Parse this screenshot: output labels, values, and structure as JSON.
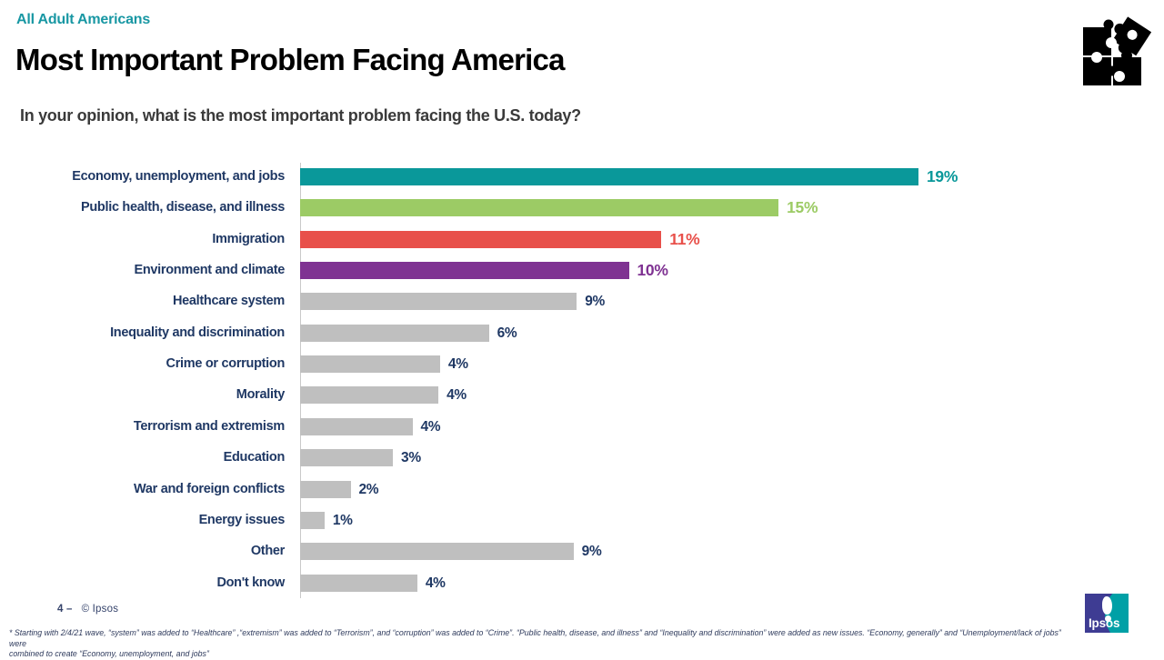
{
  "header": {
    "eyebrow": "All Adult Americans",
    "title": "Most Important Problem Facing America",
    "subtitle": "In your opinion, what is the most important problem facing the U.S. today?"
  },
  "colors": {
    "eyebrow_teal": "#1897A3",
    "category_navy": "#1F3864",
    "bar_teal": "#0A989A",
    "bar_green": "#9CCB65",
    "bar_red": "#E8504A",
    "bar_purple": "#7F3292",
    "bar_gray": "#BFBFBF",
    "axis_gray": "#C9C9C9",
    "logo_indigo": "#3E3C93",
    "logo_teal": "#00A0A6"
  },
  "chart_data": {
    "type": "bar",
    "orientation": "horizontal",
    "title": "Most Important Problem Facing America",
    "xlabel": "",
    "ylabel": "",
    "value_suffix": "%",
    "axis_range": [
      0,
      19
    ],
    "grid": false,
    "legend": false,
    "categories": [
      "Economy, unemployment, and jobs",
      "Public health, disease, and illness",
      "Immigration",
      "Environment and climate",
      "Healthcare system",
      "Inequality and discrimination",
      "Crime or corruption",
      "Morality",
      "Terrorism and extremism",
      "Education",
      "War and foreign conflicts",
      "Energy issues",
      "Other",
      "Don't know"
    ],
    "values": [
      19,
      15,
      11,
      10,
      9,
      6,
      4,
      4,
      4,
      3,
      2,
      1,
      9,
      4
    ],
    "bar_length_estimates": [
      19,
      14.7,
      11.1,
      10.1,
      8.5,
      5.8,
      4.3,
      4.25,
      3.45,
      2.85,
      1.55,
      0.75,
      8.4,
      3.6
    ],
    "bar_colors": [
      "#0A989A",
      "#9CCB65",
      "#E8504A",
      "#7F3292",
      "#BFBFBF",
      "#BFBFBF",
      "#BFBFBF",
      "#BFBFBF",
      "#BFBFBF",
      "#BFBFBF",
      "#BFBFBF",
      "#BFBFBF",
      "#BFBFBF",
      "#BFBFBF"
    ],
    "value_label_colors": [
      "#0A989A",
      "#9CCB65",
      "#E8504A",
      "#7F3292",
      "#1F3864",
      "#1F3864",
      "#1F3864",
      "#1F3864",
      "#1F3864",
      "#1F3864",
      "#1F3864",
      "#1F3864",
      "#1F3864",
      "#1F3864"
    ]
  },
  "footer": {
    "page_number": "4 –",
    "copyright": "© Ipsos",
    "footnote_line1": "* Starting with 2/4/21 wave, “system” was added to “Healthcare” ,“extremism”  was added to “Terrorism”,  and “corruption” was added to “Crime”. “Public health, disease, and illness”  and “Inequality and discrimination”  were added as new issues. “Economy, generally”  and “Unemployment/lack of jobs” were",
    "footnote_line2": "combined to create  “Economy, unemployment,  and jobs”",
    "logo_text": "Ipsos"
  },
  "icons": {
    "top_right": "puzzle-pieces-icon",
    "bottom_right": "ipsos-logo"
  }
}
